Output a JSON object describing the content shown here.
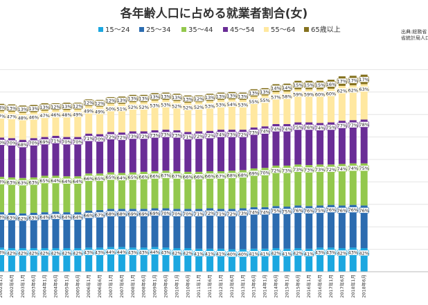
{
  "chart_data": {
    "type": "bar",
    "stacked": true,
    "title": "各年齢人口に占める就業者割合(女)",
    "source": [
      "出典:総務省",
      "省統計局人口"
    ],
    "legend_position": "top",
    "categories": [
      "2002年1月",
      "2002年6月",
      "2003年1月",
      "2003年6月",
      "2004年1月",
      "2004年6月",
      "2005年1月",
      "2005年6月",
      "2006年1月",
      "2006年6月",
      "2007年1月",
      "2007年6月",
      "2008年1月",
      "2008年6月",
      "2009年1月",
      "2009年6月",
      "2010年1月",
      "2010年6月",
      "2011年1月",
      "2011年6月",
      "2012年1月",
      "2012年6月",
      "2013年1月",
      "2013年6月",
      "2014年1月",
      "2014年6月",
      "2015年1月",
      "2015年6月",
      "2016年1月",
      "2016年6月",
      "2017年1月",
      "2017年6月",
      "2018年1月",
      "2018年6月"
    ],
    "series": [
      {
        "name": "15～24",
        "color": "#1ba7e0",
        "values": [
          43,
          42,
          42,
          42,
          42,
          42,
          42,
          42,
          43,
          43,
          44,
          44,
          43,
          43,
          44,
          43,
          42,
          42,
          41,
          41,
          41,
          40,
          40,
          41,
          41,
          42,
          41,
          42,
          41,
          43,
          43,
          42,
          43,
          42
        ]
      },
      {
        "name": "25～34",
        "color": "#2c6cb0",
        "values": [
          63,
          63,
          62,
          63,
          64,
          65,
          64,
          64,
          66,
          67,
          68,
          68,
          69,
          69,
          69,
          70,
          70,
          70,
          71,
          72,
          71,
          72,
          73,
          74,
          74,
          75,
          75,
          76,
          76,
          75,
          76,
          76,
          76,
          76
        ]
      },
      {
        "name": "35～44",
        "color": "#93c84d",
        "values": [
          63,
          63,
          63,
          63,
          65,
          64,
          64,
          64,
          66,
          65,
          65,
          64,
          65,
          66,
          66,
          67,
          67,
          66,
          66,
          66,
          67,
          68,
          68,
          69,
          70,
          72,
          73,
          73,
          73,
          73,
          72,
          74,
          74,
          75
        ]
      },
      {
        "name": "45～54",
        "color": "#6a2d96",
        "values": [
          70,
          70,
          68,
          70,
          69,
          71,
          70,
          70,
          71,
          70,
          72,
          72,
          73,
          72,
          73,
          73,
          73,
          71,
          72,
          72,
          74,
          73,
          72,
          73,
          74,
          74,
          74,
          75,
          76,
          74,
          75,
          77,
          77,
          78
        ]
      },
      {
        "name": "55～64",
        "color": "#ffe8a0",
        "values": [
          47,
          47,
          48,
          46,
          47,
          46,
          48,
          49,
          49,
          49,
          50,
          51,
          52,
          52,
          53,
          53,
          52,
          52,
          52,
          53,
          53,
          54,
          53,
          55,
          55,
          57,
          58,
          59,
          59,
          60,
          60,
          62,
          62,
          63
        ]
      },
      {
        "name": "65歳以上",
        "color": "#85721f",
        "values": [
          13,
          13,
          13,
          13,
          13,
          12,
          13,
          12,
          12,
          12,
          12,
          13,
          13,
          13,
          13,
          13,
          13,
          13,
          12,
          13,
          13,
          13,
          13,
          13,
          13,
          14,
          14,
          15,
          15,
          15,
          16,
          17,
          17,
          17
        ]
      }
    ],
    "ylim": [
      0,
      360
    ],
    "grid": true
  }
}
